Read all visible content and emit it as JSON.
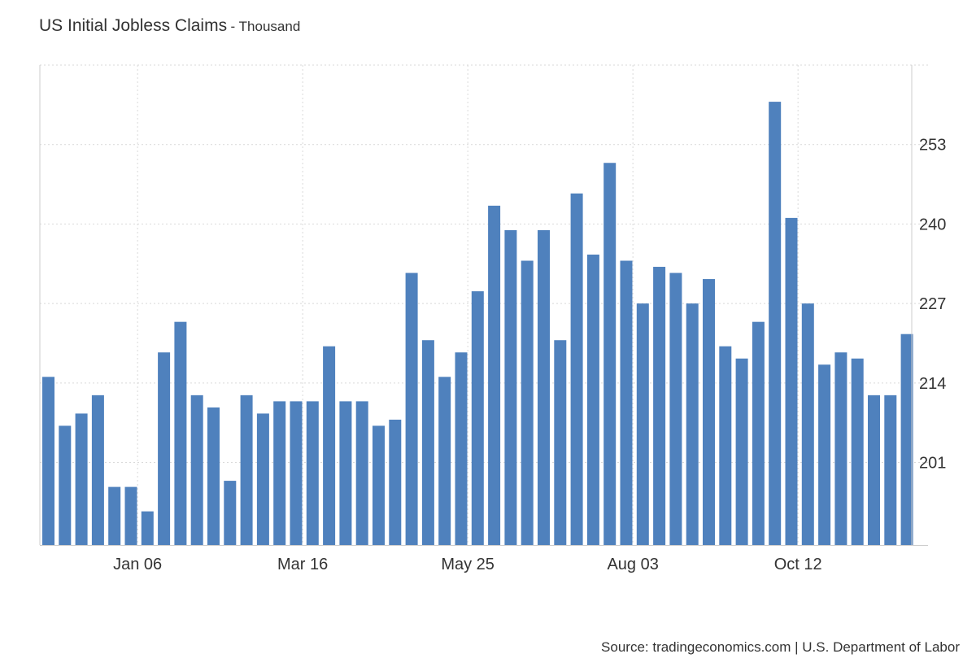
{
  "title": "US Initial Jobless Claims",
  "title_separator": "-",
  "unit": "Thousand",
  "source": "Source: tradingeconomics.com | U.S. Department of Labor",
  "colors": {
    "bar": "#4f81bd",
    "grid": "#d9d9d9",
    "axis": "#cccccc",
    "text": "#333333"
  },
  "chart_data": {
    "type": "bar",
    "ylim": [
      187.5,
      266
    ],
    "y_ticks": [
      "201",
      "214",
      "227",
      "240",
      "253"
    ],
    "x_tick_labels": [
      {
        "label": "Jan 06",
        "index": 5.5
      },
      {
        "label": "Mar 16",
        "index": 15.5
      },
      {
        "label": "May 25",
        "index": 25.5
      },
      {
        "label": "Aug 03",
        "index": 35.5
      },
      {
        "label": "Oct 12",
        "index": 45.5
      }
    ],
    "grid": true,
    "legend": "none",
    "values": [
      215,
      207,
      209,
      212,
      197,
      197,
      193,
      219,
      224,
      212,
      210,
      198,
      212,
      209,
      211,
      211,
      211,
      220,
      211,
      211,
      207,
      208,
      232,
      221,
      215,
      219,
      229,
      243,
      239,
      234,
      239,
      221,
      245,
      235,
      250,
      234,
      227,
      233,
      232,
      227,
      231,
      220,
      218,
      224,
      260,
      241,
      227,
      217,
      219,
      218,
      212,
      212,
      222
    ]
  }
}
